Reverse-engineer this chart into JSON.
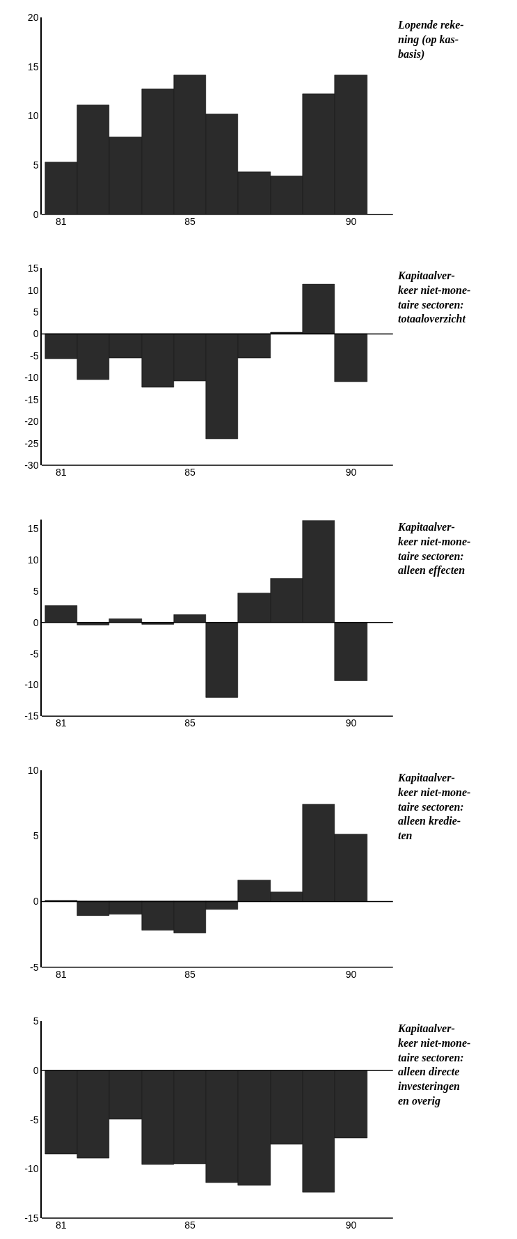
{
  "chart_data": [
    {
      "type": "bar",
      "title": "Lopende reke-\nning (op kas-\nbasis)",
      "categories": [
        "81",
        null,
        null,
        null,
        "85",
        null,
        null,
        null,
        null,
        "90"
      ],
      "values": [
        5.3,
        11.1,
        7.8,
        12.7,
        14.1,
        10.2,
        4.3,
        3.9,
        12.2,
        14.1
      ],
      "color": "#2b2b2b",
      "ylim": [
        0,
        20
      ],
      "yticks": [
        0,
        5,
        10,
        15,
        20
      ]
    },
    {
      "type": "bar",
      "title": "Kapitaalver-\nkeer niet-mone-\ntaire sectoren:\ntotaaloverzicht",
      "categories": [
        "81",
        null,
        null,
        null,
        "85",
        null,
        null,
        null,
        null,
        "90"
      ],
      "values": [
        -5.7,
        -10.4,
        -5.5,
        -12.2,
        -10.8,
        -24,
        -5.5,
        0.3,
        11.3,
        -11
      ],
      "color": "#2b2b2b",
      "ylim": [
        -30,
        15
      ],
      "yticks": [
        -30,
        -25,
        -20,
        -15,
        -10,
        -5,
        0,
        5,
        10,
        15
      ],
      "ref_lines": [
        {
          "axis": "y",
          "value": 0,
          "color": "#000000"
        }
      ]
    },
    {
      "type": "bar",
      "title": "Kapitaalver-\nkeer niet-mone-\ntaire sectoren:\nalleen effecten",
      "categories": [
        "81",
        null,
        null,
        null,
        "85",
        null,
        null,
        null,
        null,
        "90"
      ],
      "values": [
        2.7,
        -0.4,
        0.6,
        -0.3,
        1.2,
        -12,
        4.7,
        7,
        16.3,
        -9.3
      ],
      "color": "#2b2b2b",
      "ylim": [
        -15,
        16.5
      ],
      "yticks": [
        -15,
        -10,
        -5,
        0,
        5,
        10,
        15
      ],
      "ref_lines": [
        {
          "axis": "y",
          "value": 0,
          "color": "#000000"
        }
      ]
    },
    {
      "type": "bar",
      "title": "Kapitaalver-\nkeer niet-mone-\ntaire sectoren:\nalleen kredie-\nten",
      "categories": [
        "81",
        null,
        null,
        null,
        "85",
        null,
        null,
        null,
        null,
        "90"
      ],
      "values": [
        0.1,
        -1.1,
        -1,
        -2.2,
        -2.4,
        -0.6,
        1.6,
        0.7,
        7.4,
        5.1
      ],
      "color": "#2b2b2b",
      "ylim": [
        -5,
        10
      ],
      "yticks": [
        -5,
        0,
        5,
        10
      ],
      "ref_lines": [
        {
          "axis": "y",
          "value": 0,
          "color": "#000000"
        }
      ]
    },
    {
      "type": "bar",
      "title": "Kapitaalver-\nkeer niet-mone-\ntaire sectoren:\nalleen directe\ninvesteringen\nen overig",
      "categories": [
        "81",
        null,
        null,
        null,
        "85",
        null,
        null,
        null,
        null,
        "90"
      ],
      "values": [
        -8.5,
        -8.9,
        -5,
        -9.6,
        -9.5,
        -11.4,
        -11.7,
        -7.5,
        -12.4,
        -6.9
      ],
      "color": "#2b2b2b",
      "ylim": [
        -15,
        5
      ],
      "yticks": [
        -15,
        -10,
        -5,
        0,
        5
      ],
      "ref_lines": [
        {
          "axis": "y",
          "value": 0,
          "color": "#000000"
        }
      ]
    }
  ]
}
